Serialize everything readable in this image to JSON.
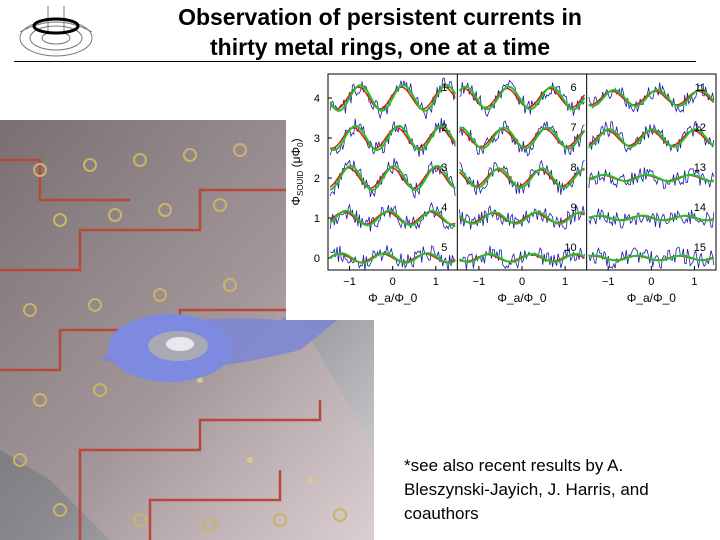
{
  "slide": {
    "title_line1": "Observation of persistent currents in",
    "title_line2": "thirty metal rings, one at a time",
    "footnote_line1": "*see also recent results by A.",
    "footnote_line2": "Bleszynski-Jayich, J. Harris, and",
    "footnote_line3": "coauthors"
  },
  "colors": {
    "data": "#1a1aa8",
    "fit_green": "#22c322",
    "fit_red": "#d81e1e",
    "trace": "#b53a2e"
  },
  "chart_data": {
    "type": "line",
    "ylabel": "Φ_SOUID (μΦ_0)",
    "yticks": [
      "0",
      "1",
      "2",
      "3",
      "4"
    ],
    "xlabels": [
      "Φ_a/Φ_0",
      "Φ_a/Φ_0",
      "Φ_a/Φ_0"
    ],
    "xticks": [
      "−1",
      "0",
      "1"
    ],
    "xlim": [
      -1.5,
      1.5
    ],
    "ylim": [
      -0.3,
      4.6
    ],
    "panel_labels": [
      "1",
      "2",
      "3",
      "4",
      "5",
      "6",
      "7",
      "8",
      "9",
      "10",
      "11",
      "12",
      "13",
      "14",
      "15"
    ],
    "offsets": [
      4,
      3,
      2,
      1,
      0
    ],
    "amplitudes": [
      0.32,
      0.3,
      0.3,
      0.18,
      0.12,
      0.28,
      0.26,
      0.24,
      0.14,
      0.1,
      0.2,
      0.22,
      0.08,
      0.06,
      0.06
    ],
    "period": 1
  }
}
